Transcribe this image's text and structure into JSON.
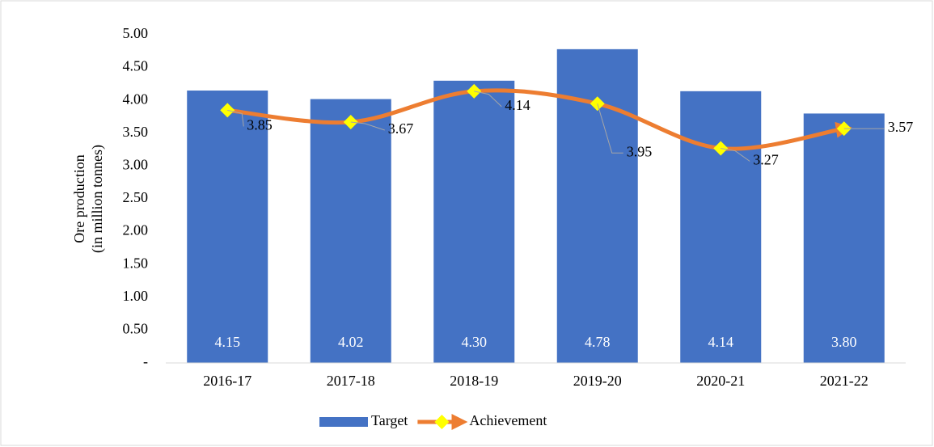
{
  "chart_data": {
    "type": "bar",
    "ylabel": [
      "Ore production",
      "(in million tonnes)"
    ],
    "categories": [
      "2016-17",
      "2017-18",
      "2018-19",
      "2019-20",
      "2020-21",
      "2021-22"
    ],
    "series": [
      {
        "name": "Target",
        "type": "bar",
        "color": "#4472c4",
        "values": [
          4.15,
          4.02,
          4.3,
          4.78,
          4.14,
          3.8
        ],
        "value_labels": [
          "4.15",
          "4.02",
          "4.30",
          "4.78",
          "4.14",
          "3.80"
        ]
      },
      {
        "name": "Achievement",
        "type": "line",
        "color": "#ed7d31",
        "marker_color": "#ffff00",
        "values": [
          3.85,
          3.67,
          4.14,
          3.95,
          3.27,
          3.57
        ]
      }
    ],
    "ylim": [
      0,
      5
    ],
    "yticks": [
      {
        "value": 0,
        "label": "-"
      },
      {
        "value": 0.5,
        "label": "0.50"
      },
      {
        "value": 1,
        "label": "1.00"
      },
      {
        "value": 1.5,
        "label": "1.50"
      },
      {
        "value": 2,
        "label": "2.00"
      },
      {
        "value": 2.5,
        "label": "2.50"
      },
      {
        "value": 3,
        "label": "3.00"
      },
      {
        "value": 3.5,
        "label": "3.50"
      },
      {
        "value": 4,
        "label": "4.00"
      },
      {
        "value": 4.5,
        "label": "4.50"
      },
      {
        "value": 5,
        "label": "5.00"
      }
    ],
    "grid": false,
    "legend": "bottom"
  }
}
